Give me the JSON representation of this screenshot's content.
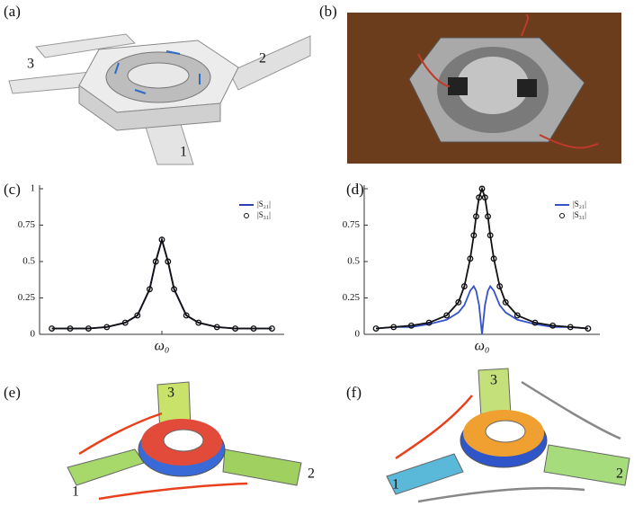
{
  "panels": {
    "a": {
      "label": "(a)",
      "ports": [
        "3",
        "2",
        "1"
      ]
    },
    "b": {
      "label": "(b)"
    },
    "e": {
      "label": "(e)",
      "ports": [
        "3",
        "1",
        "2"
      ]
    },
    "f": {
      "label": "(f)",
      "ports": [
        "3",
        "1",
        "2"
      ]
    }
  },
  "chart_data": [
    {
      "type": "line",
      "label": "(c)",
      "x": [
        -0.9,
        -0.75,
        -0.6,
        -0.45,
        -0.3,
        -0.2,
        -0.1,
        -0.05,
        0,
        0.05,
        0.1,
        0.2,
        0.3,
        0.45,
        0.6,
        0.75,
        0.9
      ],
      "xlim": [
        -1,
        1
      ],
      "xticks": [
        {
          "value": 0,
          "label": "ω₀"
        }
      ],
      "ylim": [
        0,
        1
      ],
      "yticks": [
        0,
        0.25,
        0.5,
        0.75,
        1
      ],
      "series": [
        {
          "name": "|S₂₁|",
          "color": "#2b3fb0",
          "marker": "none",
          "values": [
            0.04,
            0.04,
            0.04,
            0.05,
            0.08,
            0.13,
            0.31,
            0.5,
            0.65,
            0.5,
            0.31,
            0.13,
            0.08,
            0.05,
            0.04,
            0.04,
            0.04
          ]
        },
        {
          "name": "|S₃₁|",
          "color": "#111111",
          "marker": "circle",
          "values": [
            0.04,
            0.04,
            0.04,
            0.05,
            0.08,
            0.13,
            0.31,
            0.5,
            0.65,
            0.5,
            0.31,
            0.13,
            0.08,
            0.05,
            0.04,
            0.04,
            0.04
          ]
        }
      ]
    },
    {
      "type": "line",
      "label": "(d)",
      "x": [
        -0.9,
        -0.75,
        -0.6,
        -0.45,
        -0.3,
        -0.2,
        -0.15,
        -0.1,
        -0.07,
        -0.05,
        -0.025,
        0,
        0.025,
        0.05,
        0.07,
        0.1,
        0.15,
        0.2,
        0.3,
        0.45,
        0.6,
        0.75,
        0.9
      ],
      "xlim": [
        -1,
        1
      ],
      "xticks": [
        {
          "value": 0,
          "label": "ω₀"
        }
      ],
      "ylim": [
        0,
        1
      ],
      "yticks": [
        0,
        0.25,
        0.5,
        0.75,
        1
      ],
      "series": [
        {
          "name": "|S₂₁|",
          "color": "#3552c8",
          "marker": "none",
          "values": [
            0.04,
            0.05,
            0.05,
            0.07,
            0.1,
            0.15,
            0.2,
            0.3,
            0.33,
            0.3,
            0.2,
            0,
            0.2,
            0.3,
            0.33,
            0.3,
            0.2,
            0.15,
            0.1,
            0.07,
            0.05,
            0.05,
            0.04
          ]
        },
        {
          "name": "|S₃₁|",
          "color": "#111111",
          "marker": "circle",
          "values": [
            0.04,
            0.05,
            0.06,
            0.08,
            0.13,
            0.22,
            0.33,
            0.52,
            0.68,
            0.81,
            0.94,
            1,
            0.94,
            0.81,
            0.68,
            0.52,
            0.33,
            0.22,
            0.13,
            0.08,
            0.06,
            0.05,
            0.04
          ]
        }
      ]
    }
  ]
}
